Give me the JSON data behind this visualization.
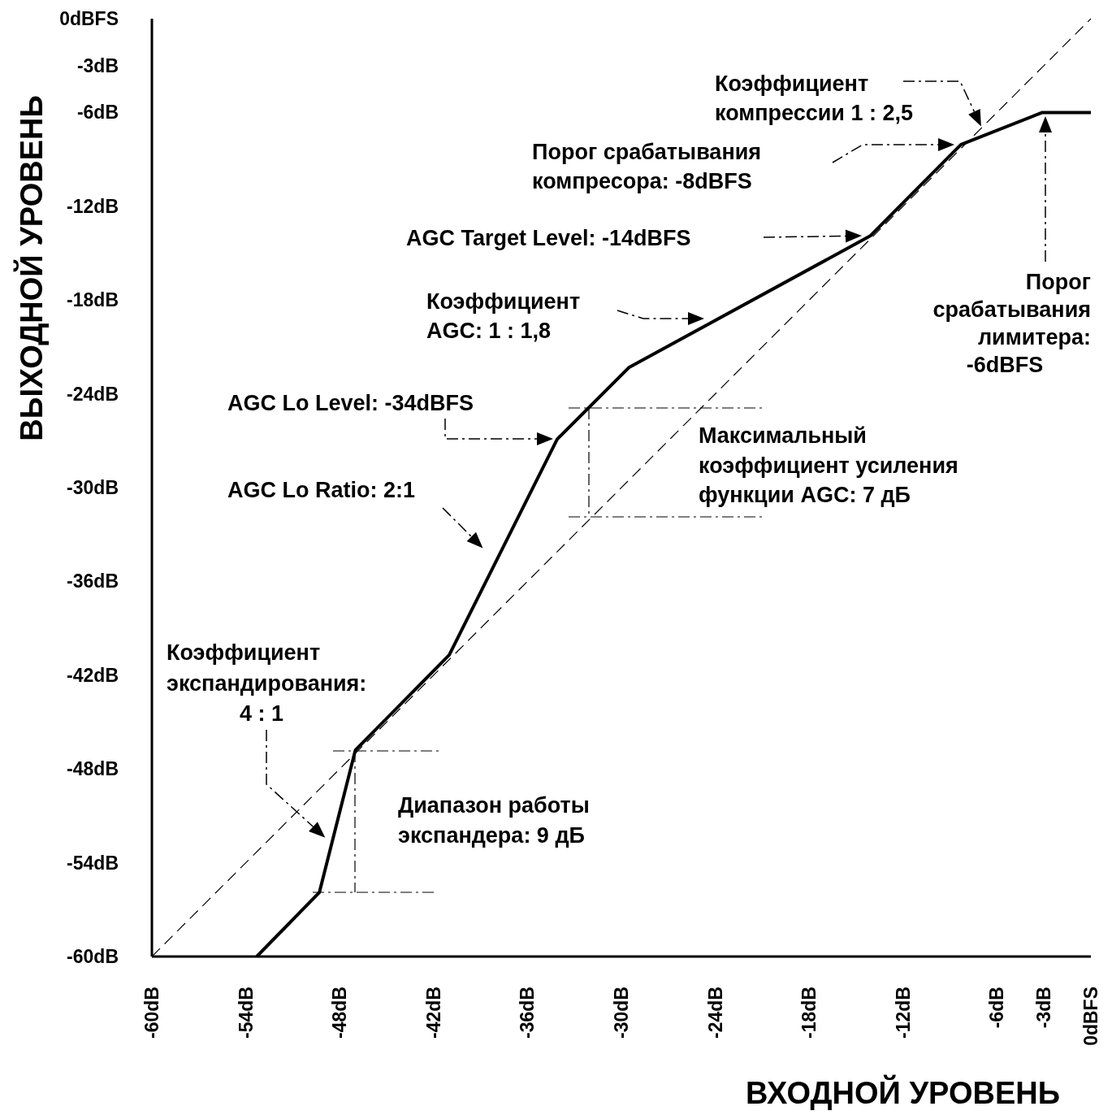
{
  "chart_data": {
    "type": "line",
    "xlabel": "ВХОДНОЙ УРОВЕНЬ",
    "ylabel": "ВЫХОДНОЙ УРОВЕНЬ",
    "xlim": [
      -60,
      0
    ],
    "ylim": [
      -60,
      0
    ],
    "xticks": [
      {
        "value": -60,
        "label": "-60dB"
      },
      {
        "value": -54,
        "label": "-54dB"
      },
      {
        "value": -48,
        "label": "-48dB"
      },
      {
        "value": -42,
        "label": "-42dB"
      },
      {
        "value": -36,
        "label": "-36dB"
      },
      {
        "value": -30,
        "label": "-30dB"
      },
      {
        "value": -24,
        "label": "-24dB"
      },
      {
        "value": -18,
        "label": "-18dB"
      },
      {
        "value": -12,
        "label": "-12dB"
      },
      {
        "value": -6,
        "label": "-6dB"
      },
      {
        "value": -3,
        "label": "-3dB"
      },
      {
        "value": 0,
        "label": "0dBFS"
      }
    ],
    "yticks": [
      {
        "value": -60,
        "label": "-60dB"
      },
      {
        "value": -54,
        "label": "-54dB"
      },
      {
        "value": -48,
        "label": "-48dB"
      },
      {
        "value": -42,
        "label": "-42dB"
      },
      {
        "value": -36,
        "label": "-36dB"
      },
      {
        "value": -30,
        "label": "-30dB"
      },
      {
        "value": -24,
        "label": "-24dB"
      },
      {
        "value": -18,
        "label": "-18dB"
      },
      {
        "value": -12,
        "label": "-12dB"
      },
      {
        "value": -6,
        "label": "-6dB"
      },
      {
        "value": -3,
        "label": "-3dB"
      },
      {
        "value": 0,
        "label": "0dBFS"
      }
    ],
    "series": [
      {
        "type": "line",
        "color": "#000000",
        "line_style": "dashed",
        "x": [
          -60,
          0
        ],
        "values": [
          -60,
          0
        ]
      },
      {
        "type": "line",
        "color": "#000000",
        "line_style": "solid",
        "x": [
          -53.3,
          -49.3,
          -47,
          -41,
          -34.1,
          -29.5,
          -14.1,
          -8.3,
          -3.1,
          0
        ],
        "values": [
          -60,
          -55.9,
          -46.8,
          -40.7,
          -26.9,
          -22.3,
          -13.9,
          -8.05,
          -6,
          -6
        ]
      }
    ],
    "annotations": [
      "Коэффициент\nкомпрессии 1 : 2,5",
      "Порог срабатывания\nкомпресора: -8dBFS",
      "AGC Target Level: -14dBFS",
      "Коэффициент\nAGC: 1 : 1,8",
      "Порог\nсрабатывания\nлимитера:\n-6dBFS",
      "AGC Lo Level: -34dBFS",
      "Максимальный\nкоэффициент усиления\nфункции AGC: 7 дБ",
      "AGC Lo Ratio: 2:1",
      "Коэффициент\nэкспандирования:\n4 : 1",
      "Диапазон работы\nэкспандера: 9 дБ"
    ]
  }
}
